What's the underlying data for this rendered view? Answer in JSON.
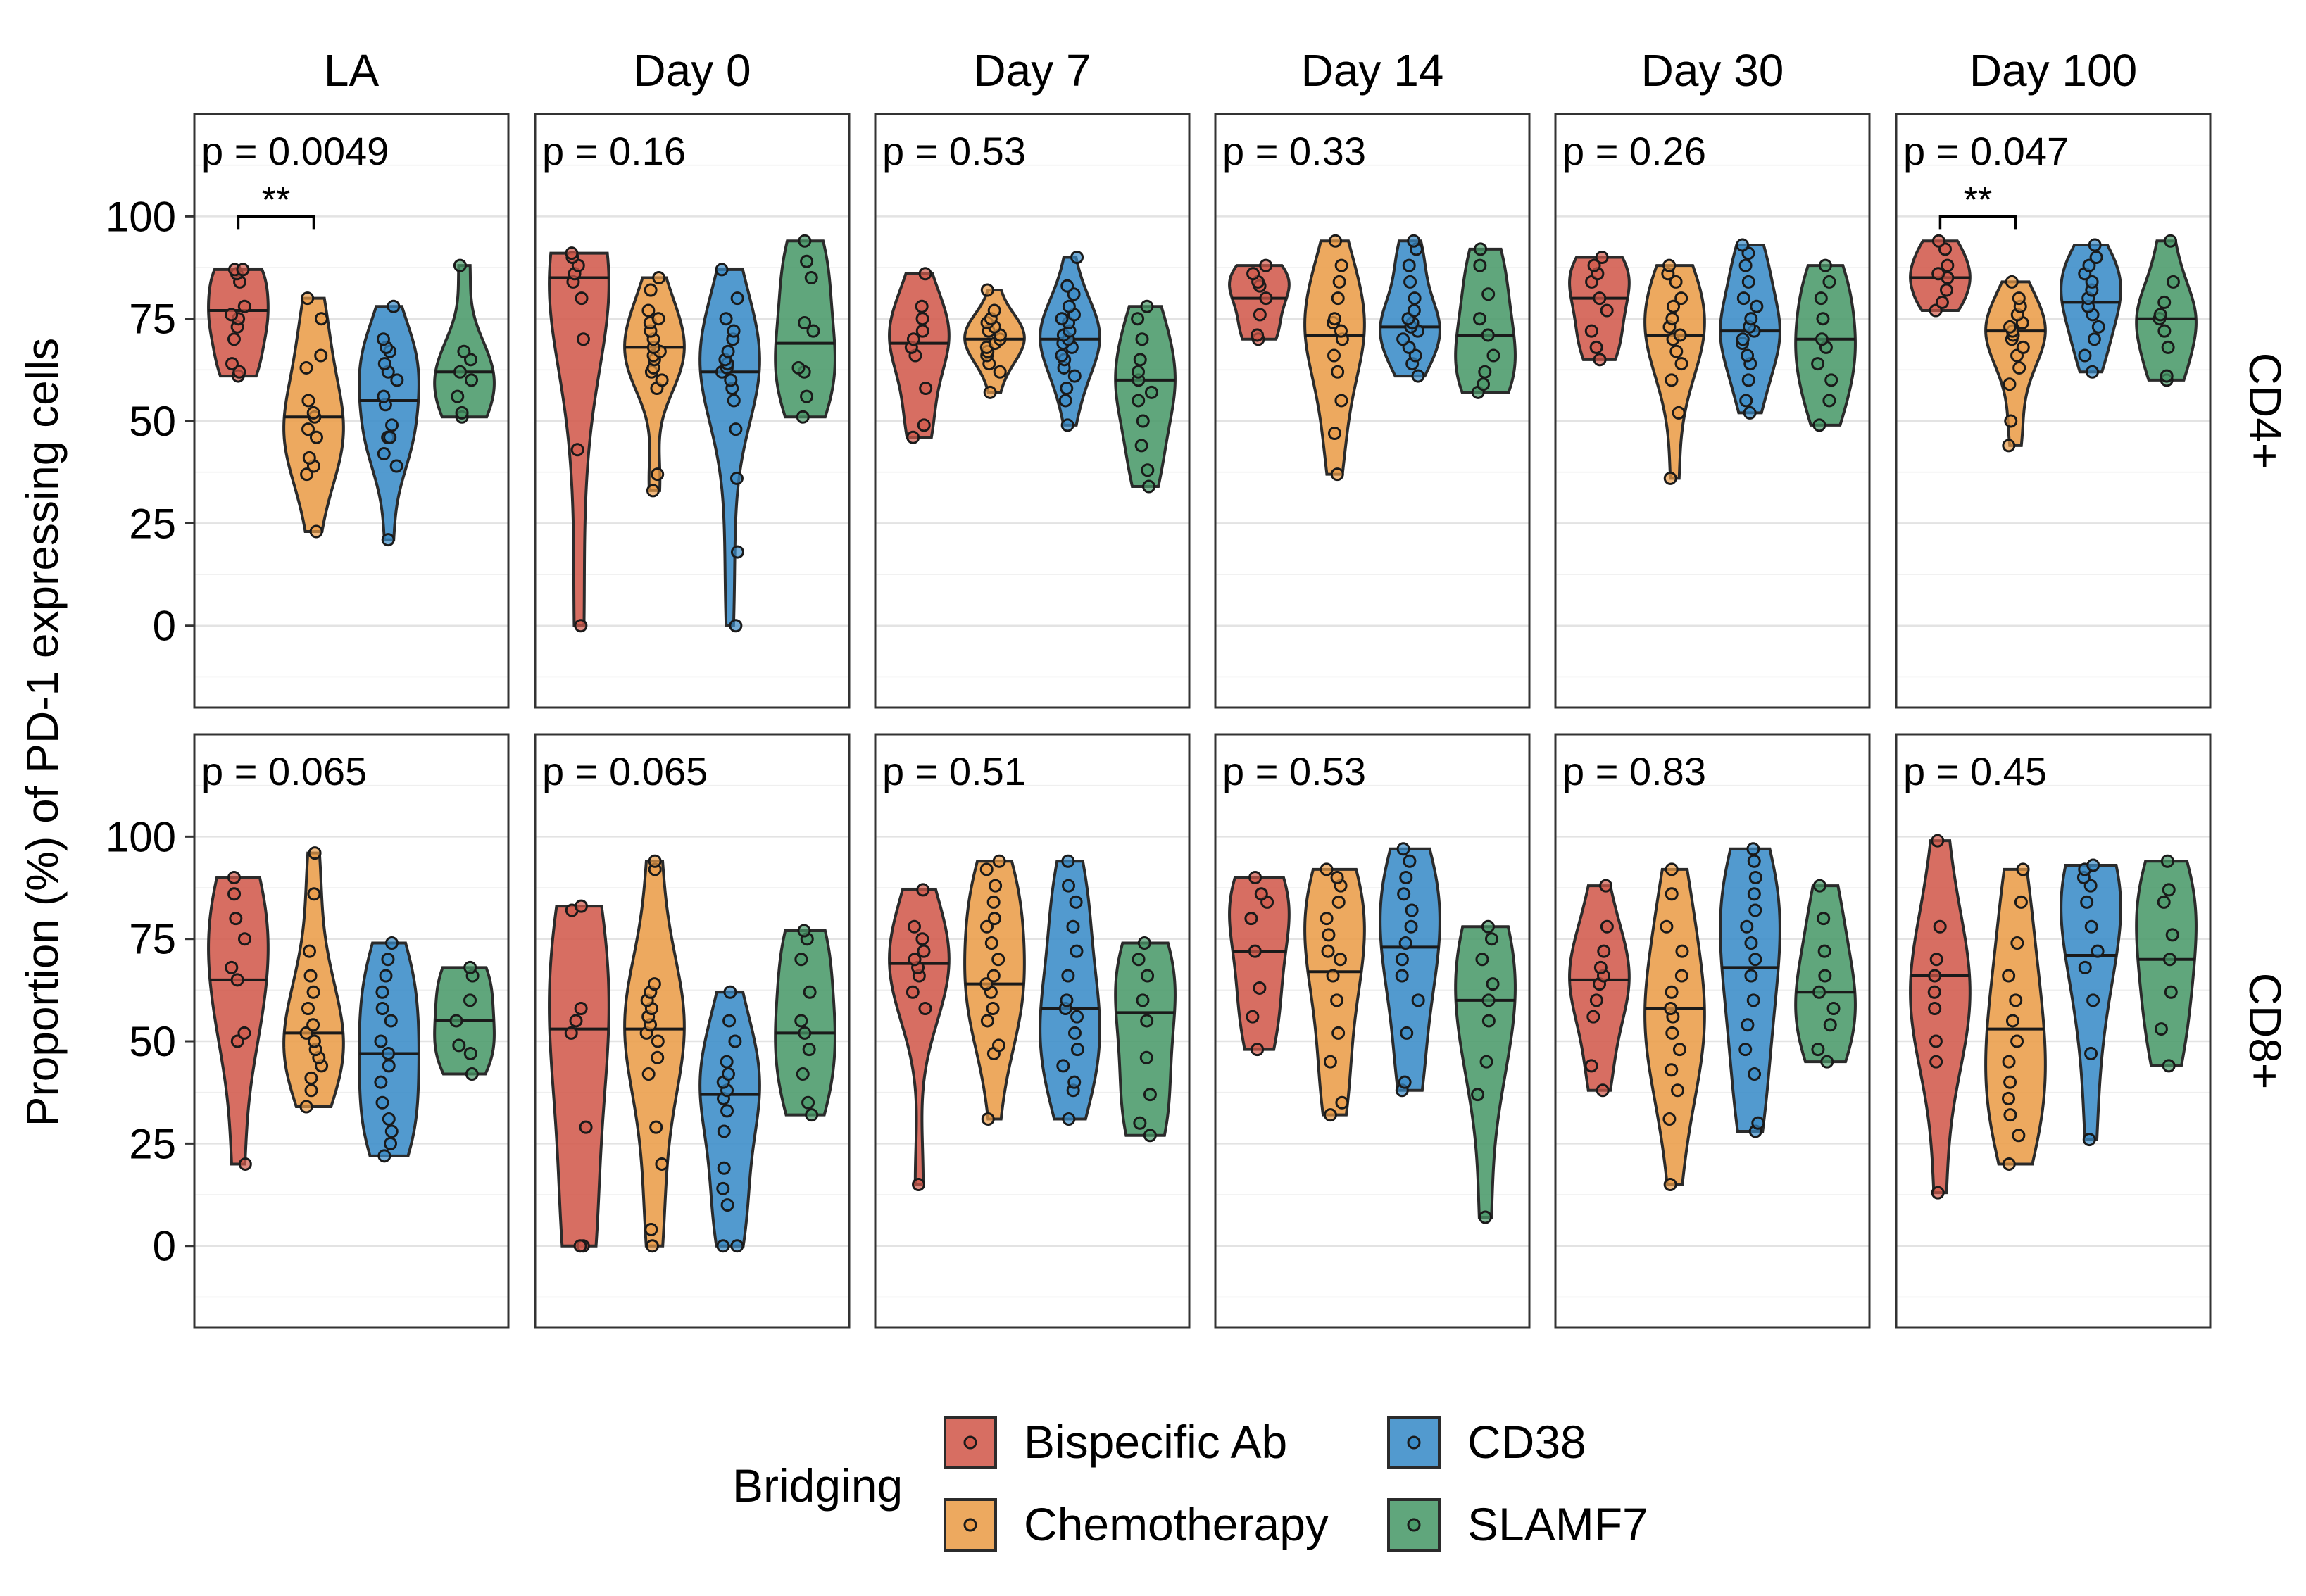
{
  "chart_data": {
    "type": "violin",
    "ylabel": "Proportion (%) of PD-1 expressing cells",
    "ylim": [
      -20,
      125
    ],
    "yticks": [
      0,
      25,
      50,
      75,
      100
    ],
    "columns": [
      "LA",
      "Day 0",
      "Day 7",
      "Day 14",
      "Day 30",
      "Day 100"
    ],
    "rows": [
      "CD4+",
      "CD8+"
    ],
    "groups": [
      "Bispecific Ab",
      "Chemotherapy",
      "CD38",
      "SLAMF7"
    ],
    "colors": {
      "Bispecific Ab": "#d15a4c",
      "Chemotherapy": "#eb9d49",
      "CD38": "#3a8cc8",
      "SLAMF7": "#4a9a6a"
    },
    "legend": {
      "title": "Bridging",
      "position": "bottom"
    },
    "grid": true,
    "panels": [
      {
        "row": "CD4+",
        "col": "LA",
        "p": "p = 0.0049",
        "signif": {
          "from": 0,
          "to": 1,
          "label": "**",
          "y": 100
        },
        "violins": [
          {
            "group": "Bispecific Ab",
            "median": 77,
            "values": [
              61,
              62,
              64,
              70,
              73,
              75,
              76,
              78,
              84,
              86,
              87,
              87
            ]
          },
          {
            "group": "Chemotherapy",
            "median": 51,
            "values": [
              23,
              37,
              39,
              41,
              46,
              48,
              51,
              52,
              55,
              63,
              66,
              75,
              80
            ]
          },
          {
            "group": "CD38",
            "median": 55,
            "values": [
              21,
              39,
              42,
              46,
              46,
              49,
              54,
              56,
              60,
              62,
              64,
              67,
              68,
              70,
              78
            ]
          },
          {
            "group": "SLAMF7",
            "median": 62,
            "values": [
              51,
              52,
              56,
              60,
              62,
              65,
              67,
              88
            ]
          }
        ]
      },
      {
        "row": "CD4+",
        "col": "Day 0",
        "p": "p = 0.16",
        "violins": [
          {
            "group": "Bispecific Ab",
            "median": 85,
            "values": [
              0,
              43,
              70,
              80,
              84,
              86,
              88,
              90,
              91
            ]
          },
          {
            "group": "Chemotherapy",
            "median": 68,
            "values": [
              33,
              37,
              58,
              60,
              62,
              63,
              65,
              66,
              67,
              68,
              70,
              72,
              74,
              75,
              77,
              82,
              85
            ]
          },
          {
            "group": "CD38",
            "median": 62,
            "values": [
              0,
              18,
              36,
              48,
              55,
              58,
              60,
              62,
              63,
              64,
              65,
              67,
              70,
              72,
              75,
              80,
              87
            ]
          },
          {
            "group": "SLAMF7",
            "median": 69,
            "values": [
              51,
              56,
              62,
              63,
              72,
              74,
              85,
              89,
              94
            ]
          }
        ]
      },
      {
        "row": "CD4+",
        "col": "Day 7",
        "p": "p = 0.53",
        "violins": [
          {
            "group": "Bispecific Ab",
            "median": 69,
            "values": [
              46,
              49,
              58,
              66,
              68,
              70,
              72,
              75,
              78,
              86
            ]
          },
          {
            "group": "Chemotherapy",
            "median": 70,
            "values": [
              57,
              62,
              64,
              66,
              67,
              68,
              69,
              70,
              71,
              72,
              73,
              74,
              75,
              77,
              82
            ]
          },
          {
            "group": "CD38",
            "median": 70,
            "values": [
              49,
              55,
              58,
              61,
              63,
              65,
              66,
              68,
              69,
              70,
              71,
              72,
              74,
              75,
              76,
              78,
              81,
              83,
              90
            ]
          },
          {
            "group": "SLAMF7",
            "median": 60,
            "values": [
              34,
              38,
              44,
              50,
              55,
              57,
              60,
              62,
              65,
              70,
              75,
              78
            ]
          }
        ]
      },
      {
        "row": "CD4+",
        "col": "Day 14",
        "p": "p = 0.33",
        "violins": [
          {
            "group": "Bispecific Ab",
            "median": 80,
            "values": [
              70,
              71,
              76,
              80,
              83,
              84,
              86,
              88
            ]
          },
          {
            "group": "Chemotherapy",
            "median": 71,
            "values": [
              37,
              47,
              55,
              62,
              66,
              70,
              72,
              74,
              75,
              80,
              84,
              88,
              94
            ]
          },
          {
            "group": "CD38",
            "median": 73,
            "values": [
              61,
              64,
              66,
              68,
              70,
              72,
              73,
              74,
              75,
              77,
              80,
              84,
              88,
              92,
              94
            ]
          },
          {
            "group": "SLAMF7",
            "median": 71,
            "values": [
              57,
              59,
              62,
              66,
              71,
              75,
              81,
              88,
              92
            ]
          }
        ]
      },
      {
        "row": "CD4+",
        "col": "Day 30",
        "p": "p = 0.26",
        "violins": [
          {
            "group": "Bispecific Ab",
            "median": 80,
            "values": [
              65,
              68,
              72,
              77,
              80,
              84,
              86,
              88,
              90
            ]
          },
          {
            "group": "Chemotherapy",
            "median": 71,
            "values": [
              36,
              52,
              60,
              64,
              67,
              70,
              71,
              73,
              75,
              78,
              80,
              84,
              86,
              88
            ]
          },
          {
            "group": "CD38",
            "median": 72,
            "values": [
              52,
              55,
              60,
              64,
              66,
              69,
              70,
              72,
              73,
              75,
              78,
              80,
              84,
              88,
              91,
              93
            ]
          },
          {
            "group": "SLAMF7",
            "median": 70,
            "values": [
              49,
              55,
              60,
              64,
              68,
              70,
              75,
              80,
              84,
              88
            ]
          }
        ]
      },
      {
        "row": "CD4+",
        "col": "Day 100",
        "p": "p = 0.047",
        "signif": {
          "from": 0,
          "to": 1,
          "label": "**",
          "y": 100
        },
        "violins": [
          {
            "group": "Bispecific Ab",
            "median": 85,
            "values": [
              77,
              79,
              82,
              85,
              86,
              88,
              92,
              94
            ]
          },
          {
            "group": "Chemotherapy",
            "median": 72,
            "values": [
              44,
              50,
              59,
              63,
              66,
              68,
              70,
              71,
              72,
              73,
              74,
              76,
              78,
              80,
              84
            ]
          },
          {
            "group": "CD38",
            "median": 79,
            "values": [
              62,
              66,
              70,
              73,
              76,
              78,
              80,
              82,
              84,
              86,
              88,
              90,
              93
            ]
          },
          {
            "group": "SLAMF7",
            "median": 75,
            "values": [
              60,
              61,
              68,
              72,
              75,
              76,
              79,
              84,
              94
            ]
          }
        ]
      },
      {
        "row": "CD8+",
        "col": "LA",
        "p": "p = 0.065",
        "violins": [
          {
            "group": "Bispecific Ab",
            "median": 65,
            "values": [
              20,
              50,
              52,
              65,
              68,
              75,
              80,
              86,
              90
            ]
          },
          {
            "group": "Chemotherapy",
            "median": 52,
            "values": [
              34,
              38,
              41,
              44,
              46,
              48,
              50,
              52,
              54,
              58,
              62,
              66,
              72,
              86,
              96
            ]
          },
          {
            "group": "CD38",
            "median": 47,
            "values": [
              22,
              25,
              28,
              31,
              35,
              40,
              44,
              47,
              50,
              55,
              58,
              62,
              66,
              70,
              74
            ]
          },
          {
            "group": "SLAMF7",
            "median": 55,
            "values": [
              42,
              47,
              49,
              55,
              60,
              66,
              68
            ]
          }
        ]
      },
      {
        "row": "CD8+",
        "col": "Day 0",
        "p": "p = 0.065",
        "violins": [
          {
            "group": "Bispecific Ab",
            "median": 53,
            "values": [
              0,
              0,
              29,
              52,
              55,
              58,
              82,
              83
            ]
          },
          {
            "group": "Chemotherapy",
            "median": 53,
            "values": [
              0,
              4,
              20,
              29,
              42,
              46,
              50,
              52,
              54,
              56,
              58,
              60,
              62,
              64,
              92,
              94
            ]
          },
          {
            "group": "CD38",
            "median": 37,
            "values": [
              0,
              0,
              10,
              14,
              19,
              28,
              33,
              36,
              38,
              40,
              42,
              45,
              50,
              55,
              62
            ]
          },
          {
            "group": "SLAMF7",
            "median": 52,
            "values": [
              32,
              35,
              42,
              48,
              52,
              55,
              62,
              70,
              75,
              77
            ]
          }
        ]
      },
      {
        "row": "CD8+",
        "col": "Day 7",
        "p": "p = 0.51",
        "violins": [
          {
            "group": "Bispecific Ab",
            "median": 69,
            "values": [
              15,
              58,
              62,
              66,
              68,
              70,
              72,
              75,
              78,
              87
            ]
          },
          {
            "group": "Chemotherapy",
            "median": 64,
            "values": [
              31,
              47,
              49,
              55,
              58,
              62,
              64,
              66,
              70,
              74,
              78,
              80,
              84,
              88,
              92,
              94
            ]
          },
          {
            "group": "CD38",
            "median": 58,
            "values": [
              31,
              38,
              40,
              44,
              48,
              52,
              56,
              58,
              60,
              66,
              72,
              78,
              84,
              88,
              94
            ]
          },
          {
            "group": "SLAMF7",
            "median": 57,
            "values": [
              27,
              30,
              37,
              46,
              55,
              60,
              66,
              70,
              74
            ]
          }
        ]
      },
      {
        "row": "CD8+",
        "col": "Day 14",
        "p": "p = 0.53",
        "violins": [
          {
            "group": "Bispecific Ab",
            "median": 72,
            "values": [
              48,
              56,
              63,
              72,
              80,
              84,
              86,
              90
            ]
          },
          {
            "group": "Chemotherapy",
            "median": 67,
            "values": [
              32,
              35,
              45,
              52,
              60,
              66,
              70,
              72,
              76,
              80,
              84,
              88,
              90,
              92
            ]
          },
          {
            "group": "CD38",
            "median": 73,
            "values": [
              38,
              40,
              52,
              60,
              66,
              70,
              74,
              78,
              82,
              86,
              90,
              94,
              97
            ]
          },
          {
            "group": "SLAMF7",
            "median": 60,
            "values": [
              7,
              37,
              45,
              55,
              60,
              64,
              70,
              75,
              78
            ]
          }
        ]
      },
      {
        "row": "CD8+",
        "col": "Day 30",
        "p": "p = 0.83",
        "violins": [
          {
            "group": "Bispecific Ab",
            "median": 65,
            "values": [
              38,
              44,
              56,
              60,
              64,
              66,
              68,
              72,
              78,
              88
            ]
          },
          {
            "group": "Chemotherapy",
            "median": 58,
            "values": [
              15,
              31,
              38,
              43,
              48,
              52,
              56,
              58,
              62,
              66,
              72,
              78,
              86,
              92
            ]
          },
          {
            "group": "CD38",
            "median": 68,
            "values": [
              28,
              30,
              42,
              48,
              54,
              60,
              66,
              70,
              74,
              78,
              82,
              86,
              90,
              94,
              97
            ]
          },
          {
            "group": "SLAMF7",
            "median": 62,
            "values": [
              45,
              48,
              54,
              58,
              62,
              66,
              72,
              80,
              88
            ]
          }
        ]
      },
      {
        "row": "CD8+",
        "col": "Day 100",
        "p": "p = 0.45",
        "violins": [
          {
            "group": "Bispecific Ab",
            "median": 66,
            "values": [
              13,
              45,
              50,
              58,
              62,
              66,
              70,
              78,
              99
            ]
          },
          {
            "group": "Chemotherapy",
            "median": 53,
            "values": [
              20,
              27,
              32,
              36,
              40,
              45,
              50,
              55,
              60,
              66,
              74,
              84,
              92
            ]
          },
          {
            "group": "CD38",
            "median": 71,
            "values": [
              26,
              47,
              60,
              68,
              72,
              78,
              84,
              88,
              90,
              92,
              93
            ]
          },
          {
            "group": "SLAMF7",
            "median": 70,
            "values": [
              44,
              53,
              62,
              70,
              76,
              84,
              87,
              94
            ]
          }
        ]
      }
    ]
  }
}
